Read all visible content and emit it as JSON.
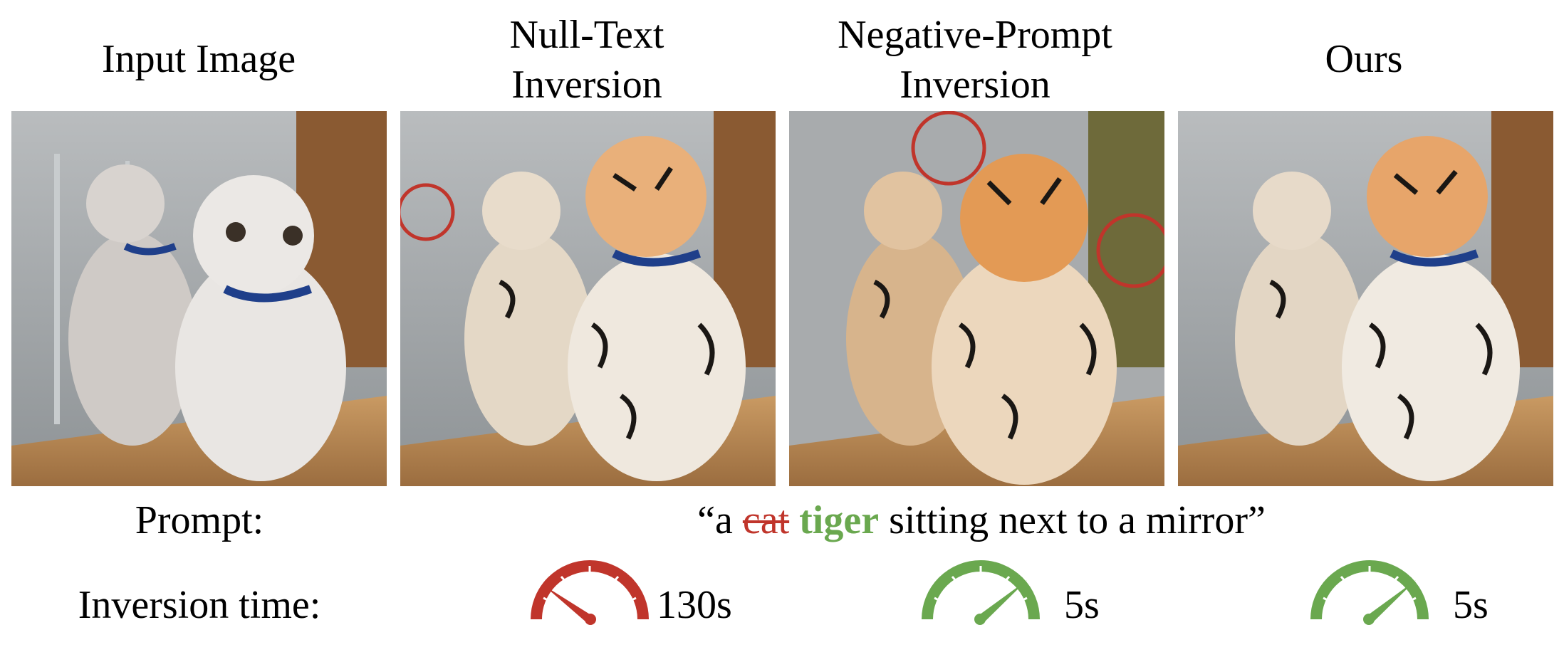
{
  "columns": [
    {
      "title_line1": "Input Image",
      "title_line2": ""
    },
    {
      "title_line1": "Null-Text",
      "title_line2": "Inversion"
    },
    {
      "title_line1": "Negative-Prompt",
      "title_line2": "Inversion"
    },
    {
      "title_line1": "Ours",
      "title_line2": ""
    }
  ],
  "labels": {
    "prompt": "Prompt:",
    "inversion_time": "Inversion time:"
  },
  "prompt": {
    "open_quote": "“a",
    "removed_word": "cat",
    "added_word": "tiger",
    "rest": "sitting next to a mirror”"
  },
  "timings": [
    {
      "value": "130s",
      "speed": "slow",
      "color": "#c0352b"
    },
    {
      "value": "5s",
      "speed": "fast",
      "color": "#6aa84f"
    },
    {
      "value": "5s",
      "speed": "fast",
      "color": "#6aa84f"
    }
  ]
}
